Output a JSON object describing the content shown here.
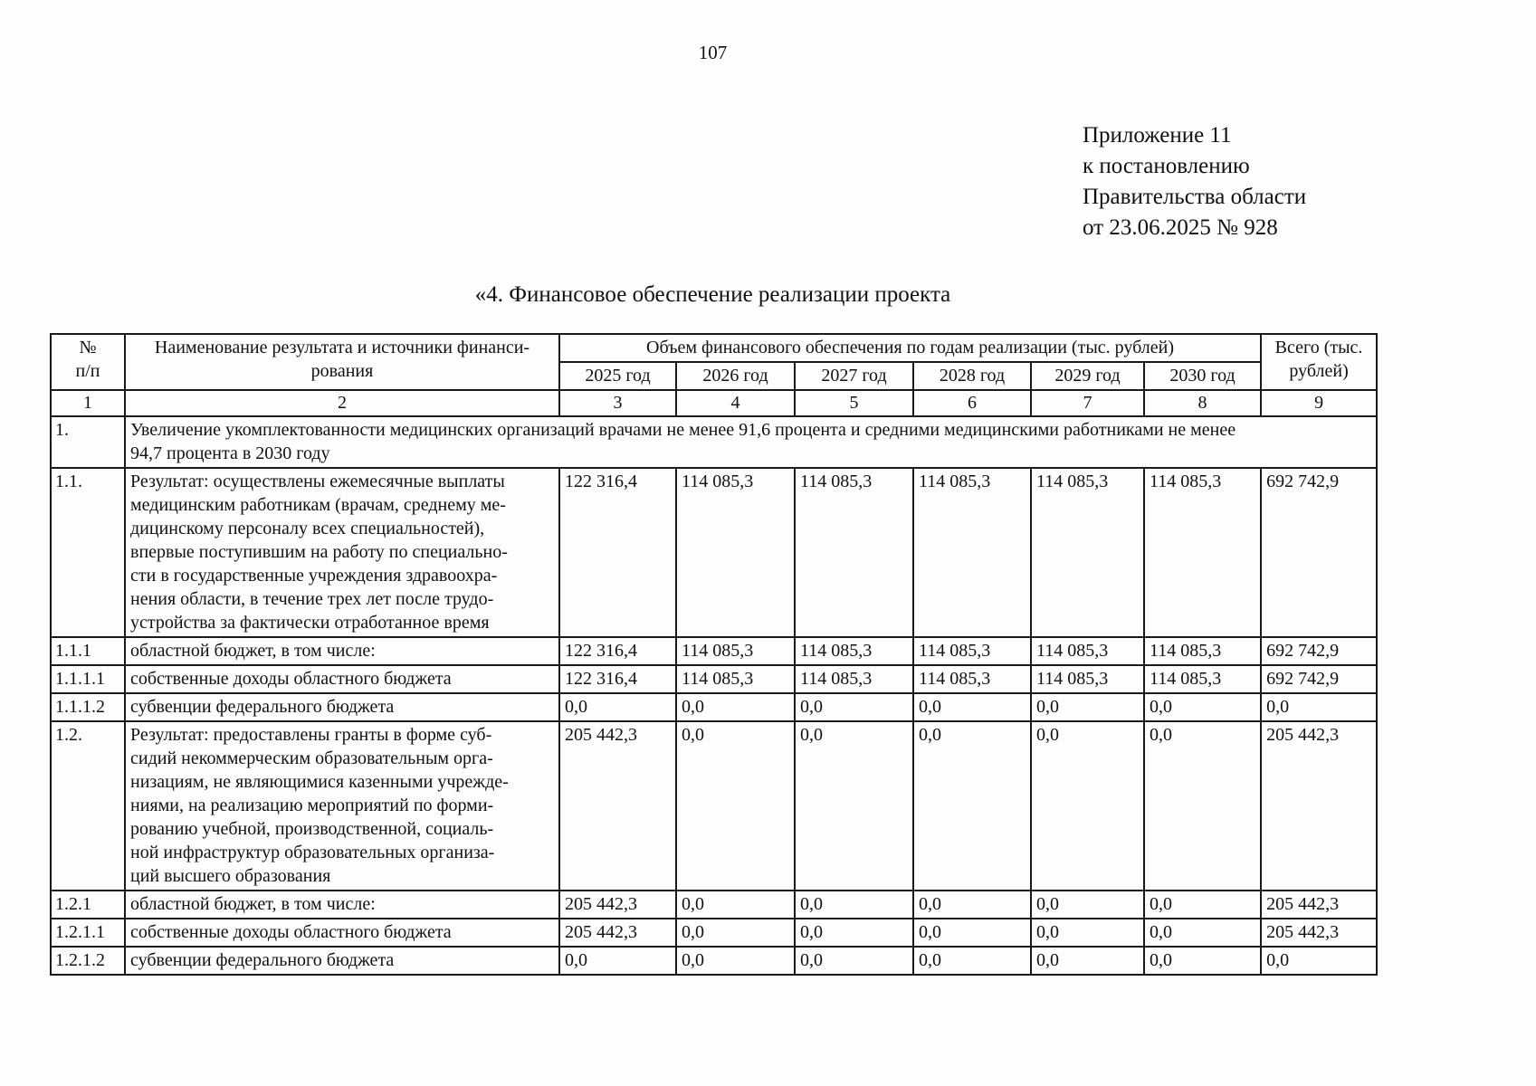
{
  "page": {
    "number": "107"
  },
  "appendix": {
    "text": "Приложение 11\nк постановлению\nПравительства области\nот 23.06.2025 № 928"
  },
  "title": "«4. Финансовое обеспечение реализации проекта",
  "table": {
    "header": {
      "num": "№\nп/п",
      "name": "Наименование результата и источники финанси-\nрования",
      "volume": "Объем финансового обеспечения по годам реализации (тыс. рублей)",
      "total": "Всего (тыс.\nрублей)",
      "years": [
        "2025 год",
        "2026 год",
        "2027 год",
        "2028 год",
        "2029 год",
        "2030 год"
      ],
      "numbers": [
        "1",
        "2",
        "3",
        "4",
        "5",
        "6",
        "7",
        "8",
        "9"
      ]
    },
    "rows": [
      {
        "num": "1.",
        "span": true,
        "name": "Увеличение укомплектованности медицинских организаций врачами не менее 91,6 процента и средними медицинскими работниками не менее\n94,7 процента в 2030 году"
      },
      {
        "num": "1.1.",
        "name": "Результат: осуществлены ежемесячные выплаты\nмедицинским работникам (врачам, среднему ме-\nдицинскому персоналу всех специальностей),\nвпервые поступившим на работу по специально-\nсти в государственные учреждения здравоохра-\nнения области, в течение трех лет после трудо-\nустройства за фактически отработанное время",
        "values": [
          "122 316,4",
          "114 085,3",
          "114 085,3",
          "114 085,3",
          "114 085,3",
          "114 085,3"
        ],
        "total": "692 742,9"
      },
      {
        "num": "1.1.1",
        "name": "областной бюджет, в том числе:",
        "values": [
          "122 316,4",
          "114 085,3",
          "114 085,3",
          "114 085,3",
          "114 085,3",
          "114 085,3"
        ],
        "total": "692 742,9"
      },
      {
        "num": "1.1.1.1",
        "name": "собственные доходы областного бюджета",
        "values": [
          "122 316,4",
          "114 085,3",
          "114 085,3",
          "114 085,3",
          "114 085,3",
          "114 085,3"
        ],
        "total": "692 742,9"
      },
      {
        "num": "1.1.1.2",
        "name": "субвенции федерального бюджета",
        "values": [
          "0,0",
          "0,0",
          "0,0",
          "0,0",
          "0,0",
          "0,0"
        ],
        "total": "0,0"
      },
      {
        "num": "1.2.",
        "name": "Результат: предоставлены гранты в форме суб-\nсидий некоммерческим образовательным орга-\nнизациям, не являющимися казенными учрежде-\nниями, на реализацию мероприятий по форми-\nрованию учебной, производственной, социаль-\nной инфраструктур образовательных организа-\nций высшего образования",
        "values": [
          "205 442,3",
          "0,0",
          "0,0",
          "0,0",
          "0,0",
          "0,0"
        ],
        "total": "205 442,3"
      },
      {
        "num": "1.2.1",
        "name": "областной бюджет, в том числе:",
        "values": [
          "205 442,3",
          "0,0",
          "0,0",
          "0,0",
          "0,0",
          "0,0"
        ],
        "total": "205 442,3"
      },
      {
        "num": "1.2.1.1",
        "name": "собственные доходы областного бюджета",
        "values": [
          "205 442,3",
          "0,0",
          "0,0",
          "0,0",
          "0,0",
          "0,0"
        ],
        "total": "205 442,3"
      },
      {
        "num": "1.2.1.2",
        "name": "субвенции федерального бюджета",
        "values": [
          "0,0",
          "0,0",
          "0,0",
          "0,0",
          "0,0",
          "0,0"
        ],
        "total": "0,0"
      }
    ]
  }
}
